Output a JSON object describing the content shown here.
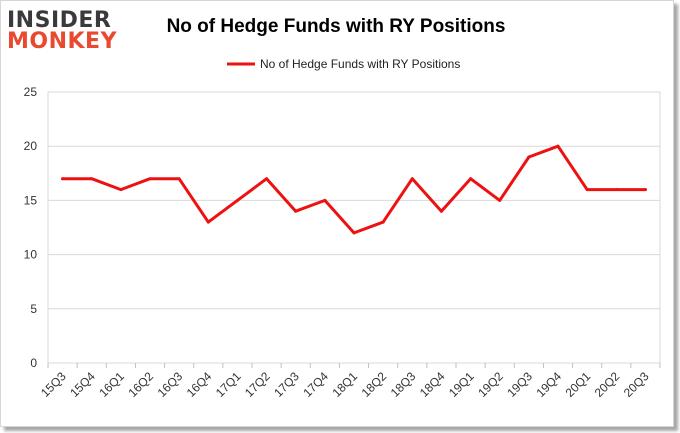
{
  "logo": {
    "line1": "INSIDER",
    "line2": "MONKEY"
  },
  "colors": {
    "series": "#ee1111",
    "logo_top": "#3a3a3a",
    "logo_bottom": "#e8492f",
    "grid": "#d9d9d9"
  },
  "chart_data": {
    "type": "line",
    "title": "No of Hedge Funds with RY Positions",
    "xlabel": "",
    "ylabel": "",
    "ylim": [
      0,
      25
    ],
    "yticks": [
      0,
      5,
      10,
      15,
      20,
      25
    ],
    "grid": true,
    "legend_position": "top-center",
    "categories": [
      "15Q3",
      "15Q4",
      "16Q1",
      "16Q2",
      "16Q3",
      "16Q4",
      "17Q1",
      "17Q2",
      "17Q3",
      "17Q4",
      "18Q1",
      "18Q2",
      "18Q3",
      "18Q4",
      "19Q1",
      "19Q2",
      "19Q3",
      "19Q4",
      "20Q1",
      "20Q2",
      "20Q3"
    ],
    "series": [
      {
        "name": "No of Hedge Funds with RY Positions",
        "values": [
          17,
          17,
          16,
          17,
          17,
          13,
          15,
          17,
          14,
          15,
          12,
          13,
          17,
          14,
          17,
          15,
          19,
          20,
          16,
          16,
          16
        ]
      }
    ]
  }
}
